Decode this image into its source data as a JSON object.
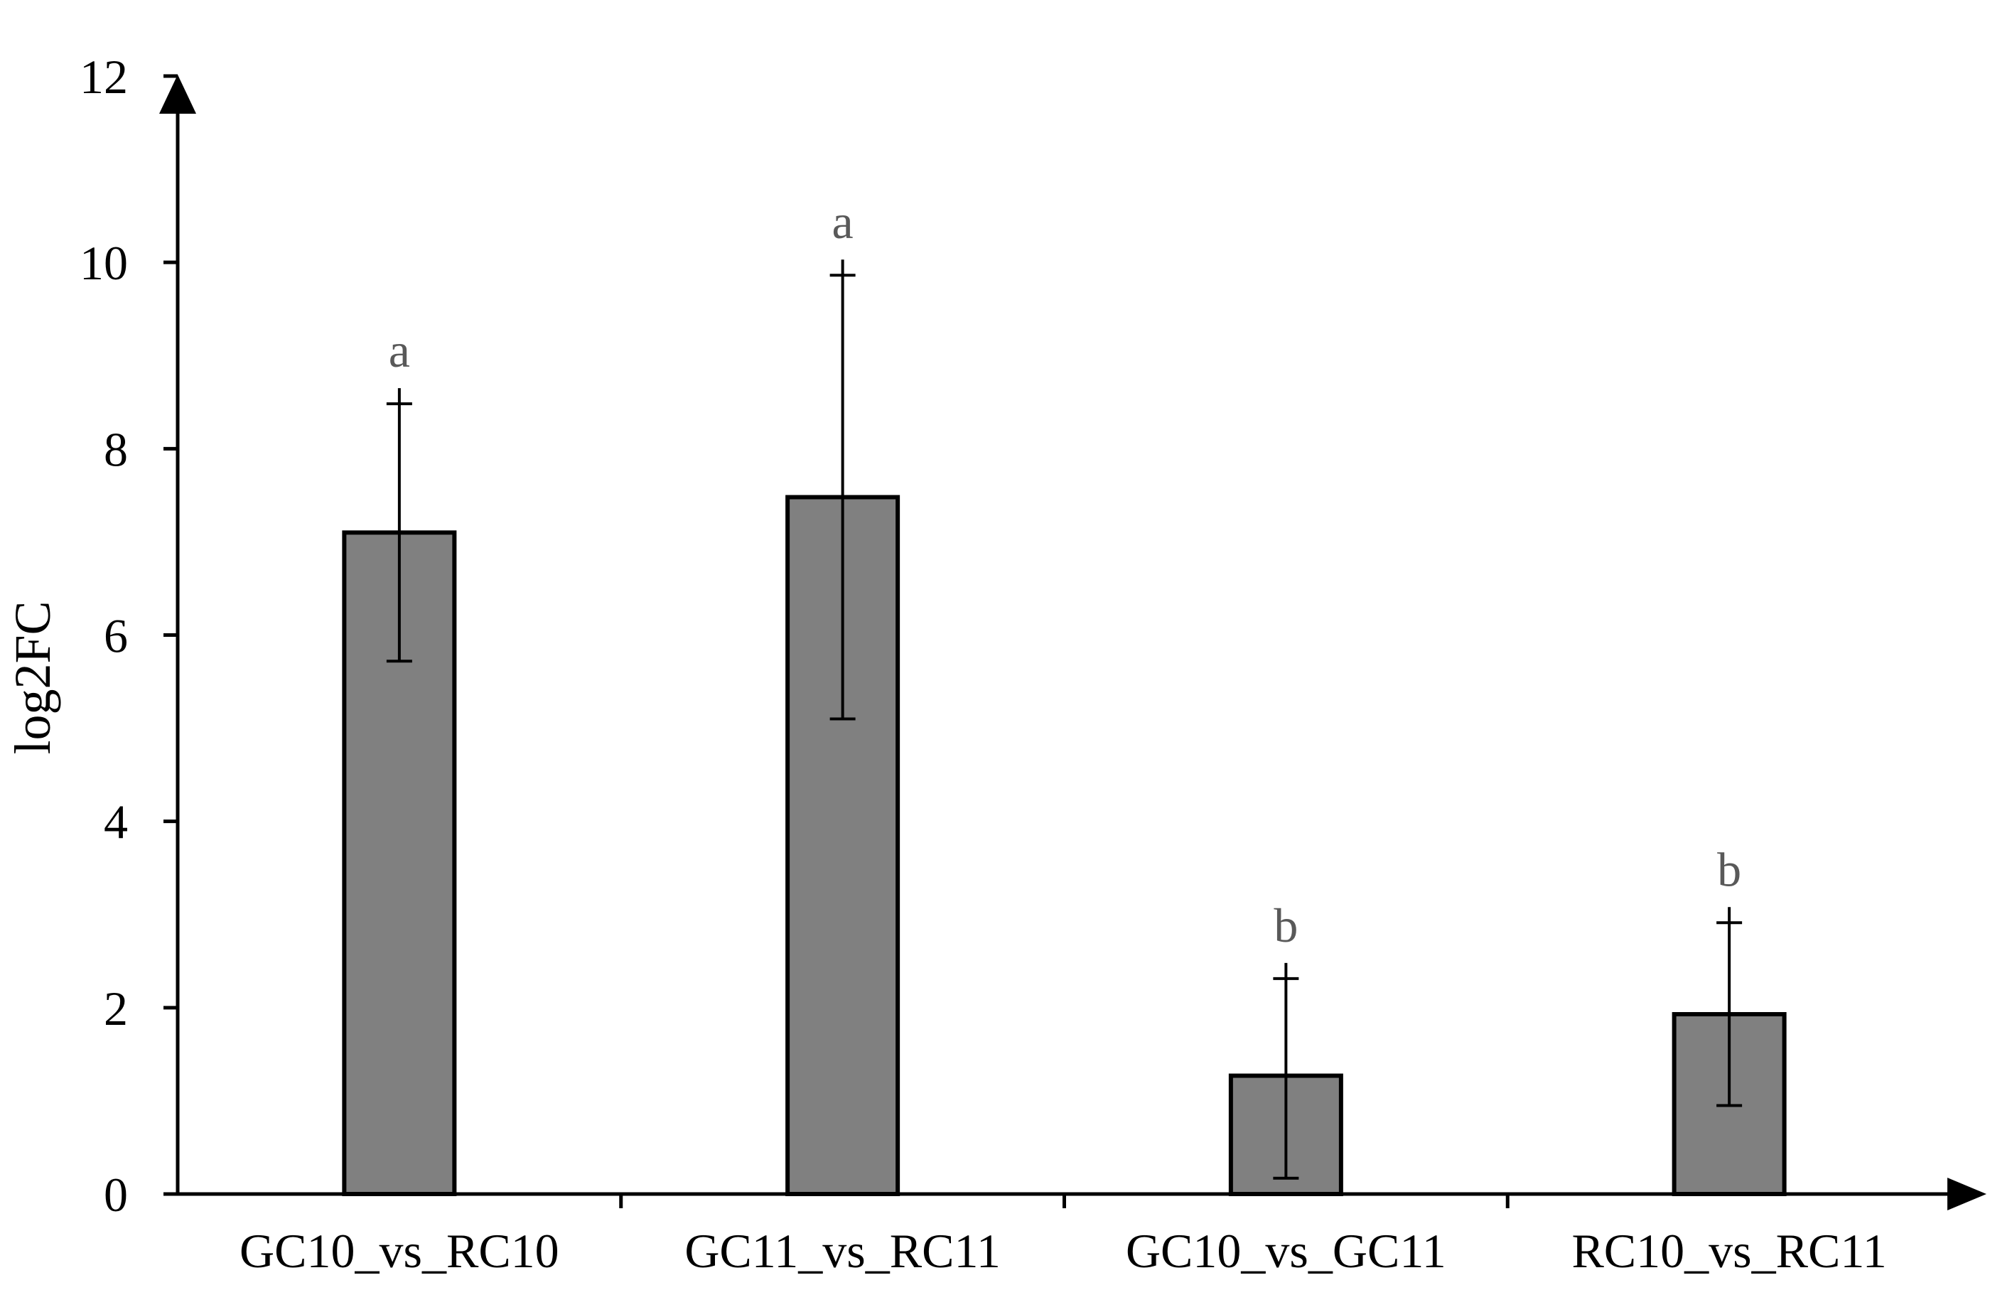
{
  "chart_data": {
    "type": "bar",
    "title": "",
    "xlabel": "",
    "ylabel": "log2FC",
    "ylim": [
      0,
      12
    ],
    "yticks": [
      0,
      2,
      4,
      6,
      8,
      10,
      12
    ],
    "ytick_labels": [
      "0",
      "2",
      "4",
      "6",
      "8",
      "10",
      "12"
    ],
    "grid": false,
    "legend": "none",
    "categories": [
      "GC10_vs_RC10",
      "GC11_vs_RC11",
      "GC10_vs_GC11",
      "RC10_vs_RC11"
    ],
    "series": [
      {
        "name": "log2FC",
        "values": [
          7.1,
          7.48,
          1.27,
          1.93
        ],
        "error_low": [
          5.72,
          5.1,
          0.17,
          0.95
        ],
        "error_high": [
          8.65,
          10.03,
          2.48,
          3.08
        ],
        "significance": [
          "a",
          "a",
          "b",
          "b"
        ]
      }
    ],
    "colors": {
      "bar_fill": "#808080",
      "bar_stroke": "#000000",
      "axis": "#000000",
      "significance_text": "#595959"
    }
  }
}
